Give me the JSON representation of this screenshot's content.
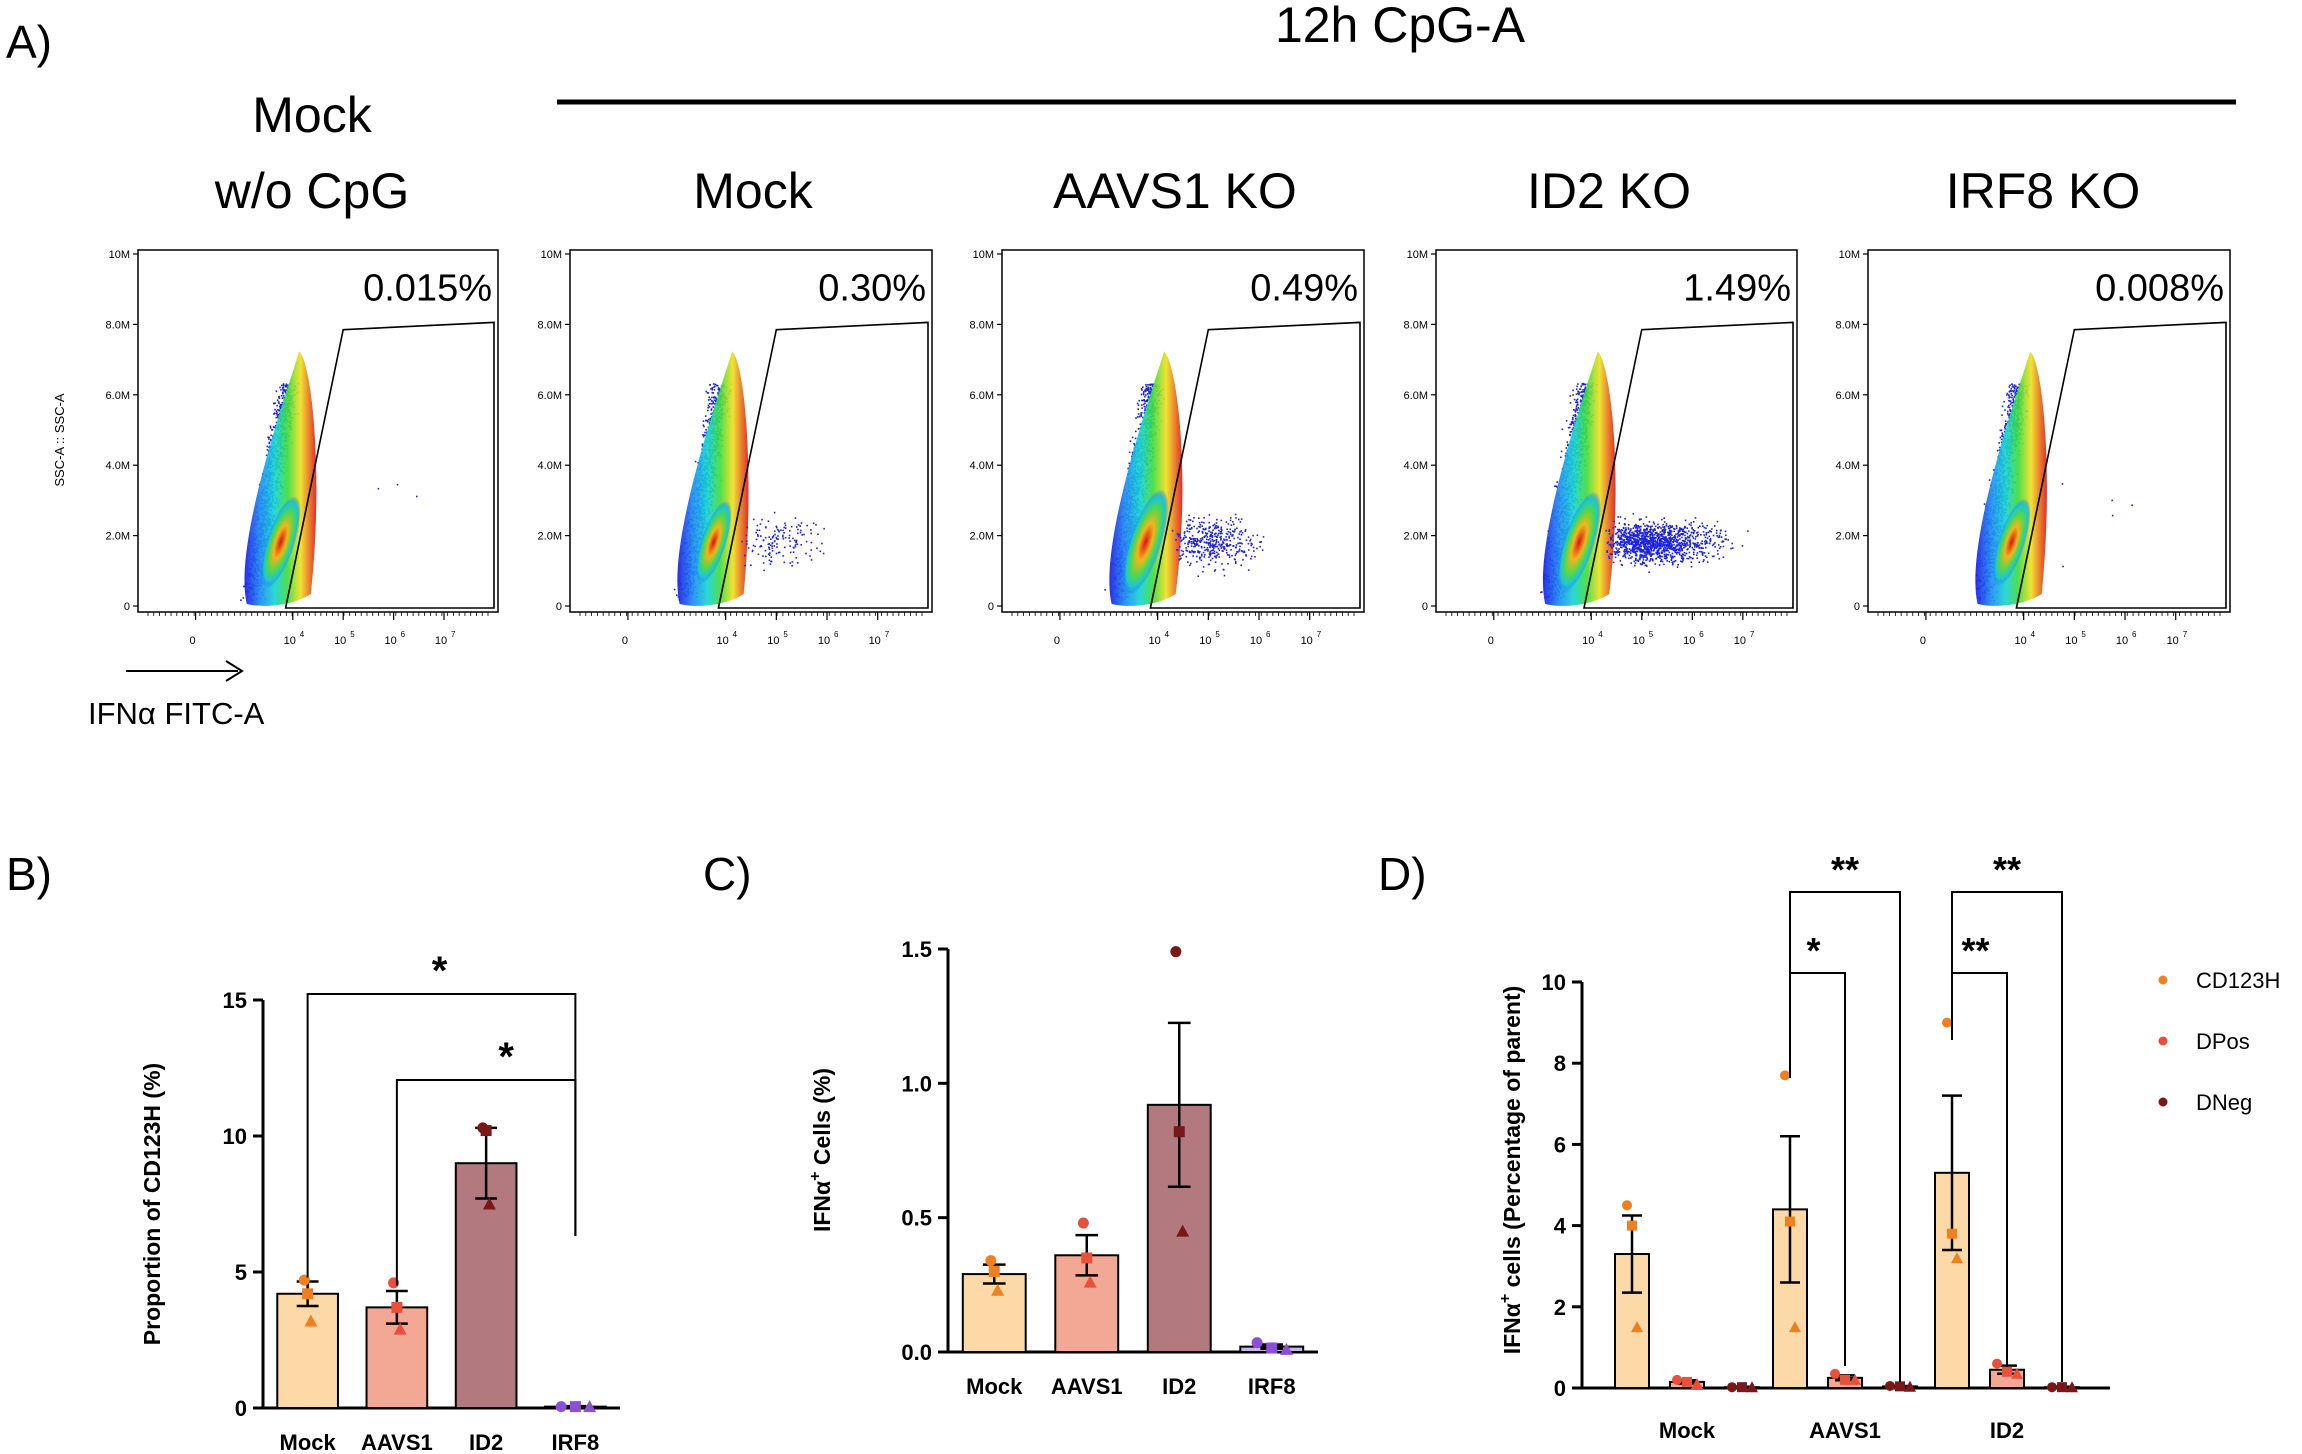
{
  "figure": {
    "panel_labels": [
      "A)",
      "B)",
      "C)",
      "D)"
    ],
    "header": "12h CpG-A",
    "flow": {
      "y_axis_label": "SSC-A :: SSC-A",
      "x_axis_label": "IFNα FITC-A",
      "y_ticks": [
        "0",
        "2.0M",
        "4.0M",
        "6.0M",
        "8.0M",
        "10M"
      ],
      "x_ticks": [
        {
          "base": "0",
          "exp": ""
        },
        {
          "base": "10",
          "exp": "4"
        },
        {
          "base": "10",
          "exp": "5"
        },
        {
          "base": "10",
          "exp": "6"
        },
        {
          "base": "10",
          "exp": "7"
        }
      ],
      "panels": [
        {
          "title_lines": [
            "Mock",
            "w/o CpG"
          ],
          "gate_percent": "0.015%",
          "gated_events": 3
        },
        {
          "title_lines": [
            "Mock"
          ],
          "gate_percent": "0.30%",
          "gated_events": 150
        },
        {
          "title_lines": [
            "AAVS1 KO"
          ],
          "gate_percent": "0.49%",
          "gated_events": 420
        },
        {
          "title_lines": [
            "ID2 KO"
          ],
          "gate_percent": "1.49%",
          "gated_events": 1300
        },
        {
          "title_lines": [
            "IRF8 KO"
          ],
          "gate_percent": "0.008%",
          "gated_events": 5
        }
      ]
    }
  },
  "chart_data": [
    {
      "panel": "B",
      "type": "bar",
      "ylabel": "Proportion of CD123H (%)",
      "ylim": [
        0,
        15
      ],
      "yticks": [
        0,
        5,
        10,
        15
      ],
      "categories": [
        "Mock",
        "AAVS1",
        "ID2",
        "IRF8"
      ],
      "values": [
        4.2,
        3.7,
        9.0,
        0.05
      ],
      "sem": [
        0.45,
        0.6,
        1.3,
        0.02
      ],
      "colors": [
        "#fcd9a6",
        "#f3a895",
        "#b2797f",
        "#c9b6e8"
      ],
      "points": [
        [
          4.7,
          4.2,
          3.2
        ],
        [
          4.6,
          3.7,
          2.9
        ],
        [
          10.3,
          10.2,
          7.5
        ],
        [
          0.05,
          0.05,
          0.05
        ]
      ],
      "point_colors": [
        "#f07f1f",
        "#e8503a",
        "#7a1717",
        "#8d4fd6"
      ],
      "significance": [
        {
          "from": "Mock",
          "to": "IRF8",
          "label": "*"
        },
        {
          "from": "AAVS1",
          "to": "IRF8",
          "label": "*"
        }
      ]
    },
    {
      "panel": "C",
      "type": "bar",
      "ylabel_prefix": "IFNα",
      "ylabel_sup": "+",
      "ylabel_suffix": " Cells (%)",
      "ylim": [
        0,
        1.5
      ],
      "yticks": [
        "0.0",
        "0.5",
        "1.0",
        "1.5"
      ],
      "ytick_values": [
        0,
        0.5,
        1.0,
        1.5
      ],
      "categories": [
        "Mock",
        "AAVS1",
        "ID2",
        "IRF8"
      ],
      "values": [
        0.29,
        0.36,
        0.92,
        0.02
      ],
      "sem": [
        0.035,
        0.075,
        0.305,
        0.008
      ],
      "colors": [
        "#fcd9a6",
        "#f3a895",
        "#b2797f",
        "#c9b6e8"
      ],
      "points": [
        [
          0.34,
          0.3,
          0.23
        ],
        [
          0.48,
          0.35,
          0.26
        ],
        [
          1.49,
          0.82,
          0.45
        ],
        [
          0.035,
          0.015,
          0.01
        ]
      ],
      "point_colors": [
        "#f07f1f",
        "#e8503a",
        "#7a1717",
        "#8d4fd6"
      ]
    },
    {
      "panel": "D",
      "type": "bar",
      "ylabel_prefix": "IFNα",
      "ylabel_sup": "+",
      "ylabel_suffix": " cells (Percentage of parent)",
      "ylim": [
        0,
        10
      ],
      "yticks": [
        0,
        2,
        4,
        6,
        8,
        10
      ],
      "categories": [
        "Mock",
        "AAVS1",
        "ID2"
      ],
      "series": [
        {
          "name": "CD123H",
          "color": "#fcd9a6",
          "point_color": "#f07f1f",
          "values": [
            3.3,
            4.4,
            5.3
          ],
          "sem": [
            0.95,
            1.8,
            1.9
          ],
          "points": [
            [
              4.5,
              4.0,
              1.5
            ],
            [
              7.7,
              4.1,
              1.5
            ],
            [
              9.0,
              3.8,
              3.2
            ]
          ]
        },
        {
          "name": "DPos",
          "color": "#f3a895",
          "point_color": "#e8503a",
          "values": [
            0.15,
            0.25,
            0.45
          ],
          "sem": [
            0.04,
            0.06,
            0.1
          ],
          "points": [
            [
              0.2,
              0.15,
              0.1
            ],
            [
              0.35,
              0.2,
              0.2
            ],
            [
              0.6,
              0.4,
              0.35
            ]
          ]
        },
        {
          "name": "DNeg",
          "color": "#b2797f",
          "point_color": "#7a1717",
          "values": [
            0.02,
            0.04,
            0.02
          ],
          "sem": [
            0.01,
            0.01,
            0.01
          ],
          "points": [
            [
              0.02,
              0.02,
              0.02
            ],
            [
              0.05,
              0.04,
              0.03
            ],
            [
              0.02,
              0.02,
              0.02
            ]
          ]
        }
      ],
      "legend": [
        "CD123H",
        "DPos",
        "DNeg"
      ],
      "significance": [
        {
          "group": "AAVS1",
          "from": "CD123H",
          "to": "DNeg",
          "label": "**"
        },
        {
          "group": "AAVS1",
          "from": "CD123H",
          "to": "DPos",
          "label": "*"
        },
        {
          "group": "ID2",
          "from": "CD123H",
          "to": "DNeg",
          "label": "**"
        },
        {
          "group": "ID2",
          "from": "CD123H",
          "to": "DPos",
          "label": "**"
        }
      ]
    }
  ]
}
